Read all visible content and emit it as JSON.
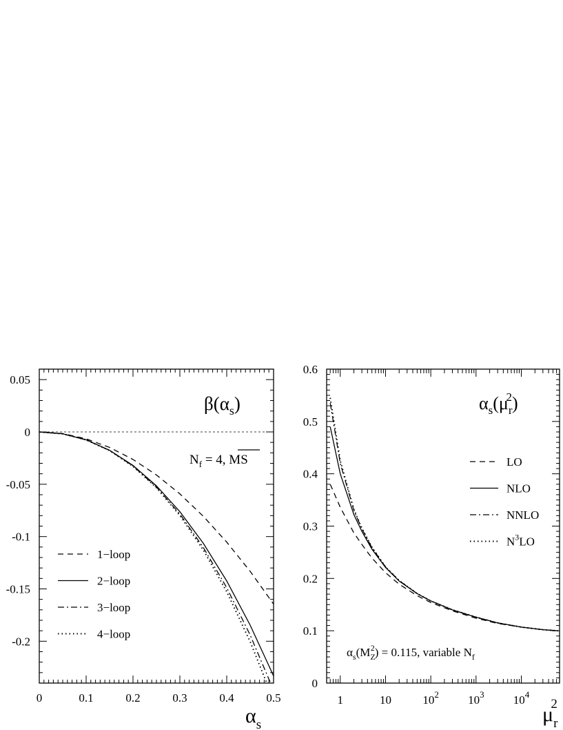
{
  "chart_data": [
    {
      "type": "line",
      "title_main": "β(α",
      "title_sub": "s",
      "title_close": ")",
      "annotation_main": "N",
      "annotation_sub": "f",
      "annotation_rest": " = 4, ",
      "annotation_scheme": "MS",
      "xlabel_main": "α",
      "xlabel_sub": "s",
      "ylabel": "",
      "xlim": [
        0,
        0.5
      ],
      "ylim": [
        -0.24,
        0.06
      ],
      "x_ticks": [
        "0",
        "0.1",
        "0.2",
        "0.3",
        "0.4",
        "0.5"
      ],
      "y_ticks": [
        "0.05",
        "0",
        "-0.05",
        "-0.1",
        "-0.15",
        "-0.2"
      ],
      "grid": false,
      "legend_position": "lower-left",
      "reference_line": {
        "y": 0,
        "style": "dashed"
      },
      "series": [
        {
          "name": "1−loop",
          "style": "dashed",
          "x": [
            0,
            0.05,
            0.1,
            0.15,
            0.2,
            0.25,
            0.3,
            0.35,
            0.4,
            0.45,
            0.5
          ],
          "y": [
            0,
            -0.0016,
            -0.0066,
            -0.0148,
            -0.0263,
            -0.0411,
            -0.0592,
            -0.0806,
            -0.1053,
            -0.1332,
            -0.1645
          ]
        },
        {
          "name": "2−loop",
          "style": "solid",
          "x": [
            0,
            0.05,
            0.1,
            0.15,
            0.2,
            0.25,
            0.3,
            0.35,
            0.4,
            0.45,
            0.5
          ],
          "y": [
            0,
            -0.0018,
            -0.0075,
            -0.0175,
            -0.032,
            -0.0515,
            -0.0762,
            -0.1064,
            -0.1424,
            -0.1846,
            -0.2332
          ]
        },
        {
          "name": "3−loop",
          "style": "dashdot",
          "x": [
            0,
            0.05,
            0.1,
            0.15,
            0.2,
            0.25,
            0.3,
            0.35,
            0.4,
            0.45,
            0.5
          ],
          "y": [
            0,
            -0.0018,
            -0.0076,
            -0.0177,
            -0.0326,
            -0.0527,
            -0.0785,
            -0.1104,
            -0.1488,
            -0.1941,
            -0.2468
          ]
        },
        {
          "name": "4−loop",
          "style": "dotted",
          "x": [
            0,
            0.05,
            0.1,
            0.15,
            0.2,
            0.25,
            0.3,
            0.35,
            0.4,
            0.45,
            0.5
          ],
          "y": [
            0,
            -0.0018,
            -0.0076,
            -0.0178,
            -0.0329,
            -0.0533,
            -0.0798,
            -0.1127,
            -0.1527,
            -0.2004,
            -0.2563
          ]
        }
      ]
    },
    {
      "type": "line",
      "title_main": "α",
      "title_sub": "s",
      "title_paren": "(μ",
      "title_sub2": "r",
      "title_sup": "2",
      "title_close": ")",
      "annotation_main": "α",
      "annotation_sub": "s",
      "annotation_paren": "(M",
      "annotation_sub2": "Z",
      "annotation_sup": "2",
      "annotation_rest": ") = 0.115, variable N",
      "annotation_sub3": "f",
      "xlabel_main": "μ",
      "xlabel_sub": "r",
      "xlabel_sup": "2",
      "ylabel": "",
      "xscale": "log",
      "xlim": [
        0.5,
        70000
      ],
      "ylim": [
        0,
        0.6
      ],
      "x_ticks": [
        {
          "value": 1,
          "base": "1",
          "exp": ""
        },
        {
          "value": 10,
          "base": "10",
          "exp": ""
        },
        {
          "value": 100,
          "base": "10",
          "exp": "2"
        },
        {
          "value": 1000,
          "base": "10",
          "exp": "3"
        },
        {
          "value": 10000,
          "base": "10",
          "exp": "4"
        }
      ],
      "y_ticks": [
        "0",
        "0.1",
        "0.2",
        "0.3",
        "0.4",
        "0.5",
        "0.6"
      ],
      "grid": false,
      "legend_position": "right",
      "series": [
        {
          "name_main": "LO",
          "name_sup": "",
          "name_rest": "",
          "style": "dashed",
          "x": [
            0.6,
            1,
            2,
            3,
            5,
            10,
            20,
            50,
            100,
            300,
            1000,
            3000,
            10000,
            30000,
            65000
          ],
          "y": [
            0.38,
            0.336,
            0.287,
            0.265,
            0.239,
            0.211,
            0.189,
            0.167,
            0.154,
            0.138,
            0.124,
            0.114,
            0.107,
            0.102,
            0.1
          ]
        },
        {
          "name_main": "NLO",
          "name_sup": "",
          "name_rest": "",
          "style": "solid",
          "x": [
            0.6,
            1,
            2,
            3,
            5,
            10,
            20,
            50,
            100,
            300,
            1000,
            3000,
            10000,
            30000,
            65000
          ],
          "y": [
            0.49,
            0.4,
            0.322,
            0.29,
            0.256,
            0.221,
            0.195,
            0.171,
            0.157,
            0.14,
            0.126,
            0.115,
            0.107,
            0.102,
            0.1
          ]
        },
        {
          "name_main": "NNLO",
          "name_sup": "",
          "name_rest": "",
          "style": "dashdot",
          "x": [
            0.6,
            1,
            2,
            3,
            5,
            10,
            20,
            50,
            100,
            300,
            1000,
            3000,
            10000,
            30000,
            65000
          ],
          "y": [
            0.535,
            0.42,
            0.33,
            0.295,
            0.259,
            0.222,
            0.196,
            0.171,
            0.157,
            0.14,
            0.126,
            0.115,
            0.107,
            0.102,
            0.1
          ]
        },
        {
          "name_main": "N",
          "name_sup": "3",
          "name_rest": "LO",
          "style": "dotted",
          "x": [
            0.6,
            1,
            2,
            3,
            5,
            10,
            20,
            50,
            100,
            300,
            1000,
            3000,
            10000,
            30000,
            65000
          ],
          "y": [
            0.545,
            0.425,
            0.332,
            0.296,
            0.26,
            0.222,
            0.196,
            0.171,
            0.157,
            0.14,
            0.126,
            0.115,
            0.107,
            0.102,
            0.1
          ]
        }
      ]
    }
  ]
}
